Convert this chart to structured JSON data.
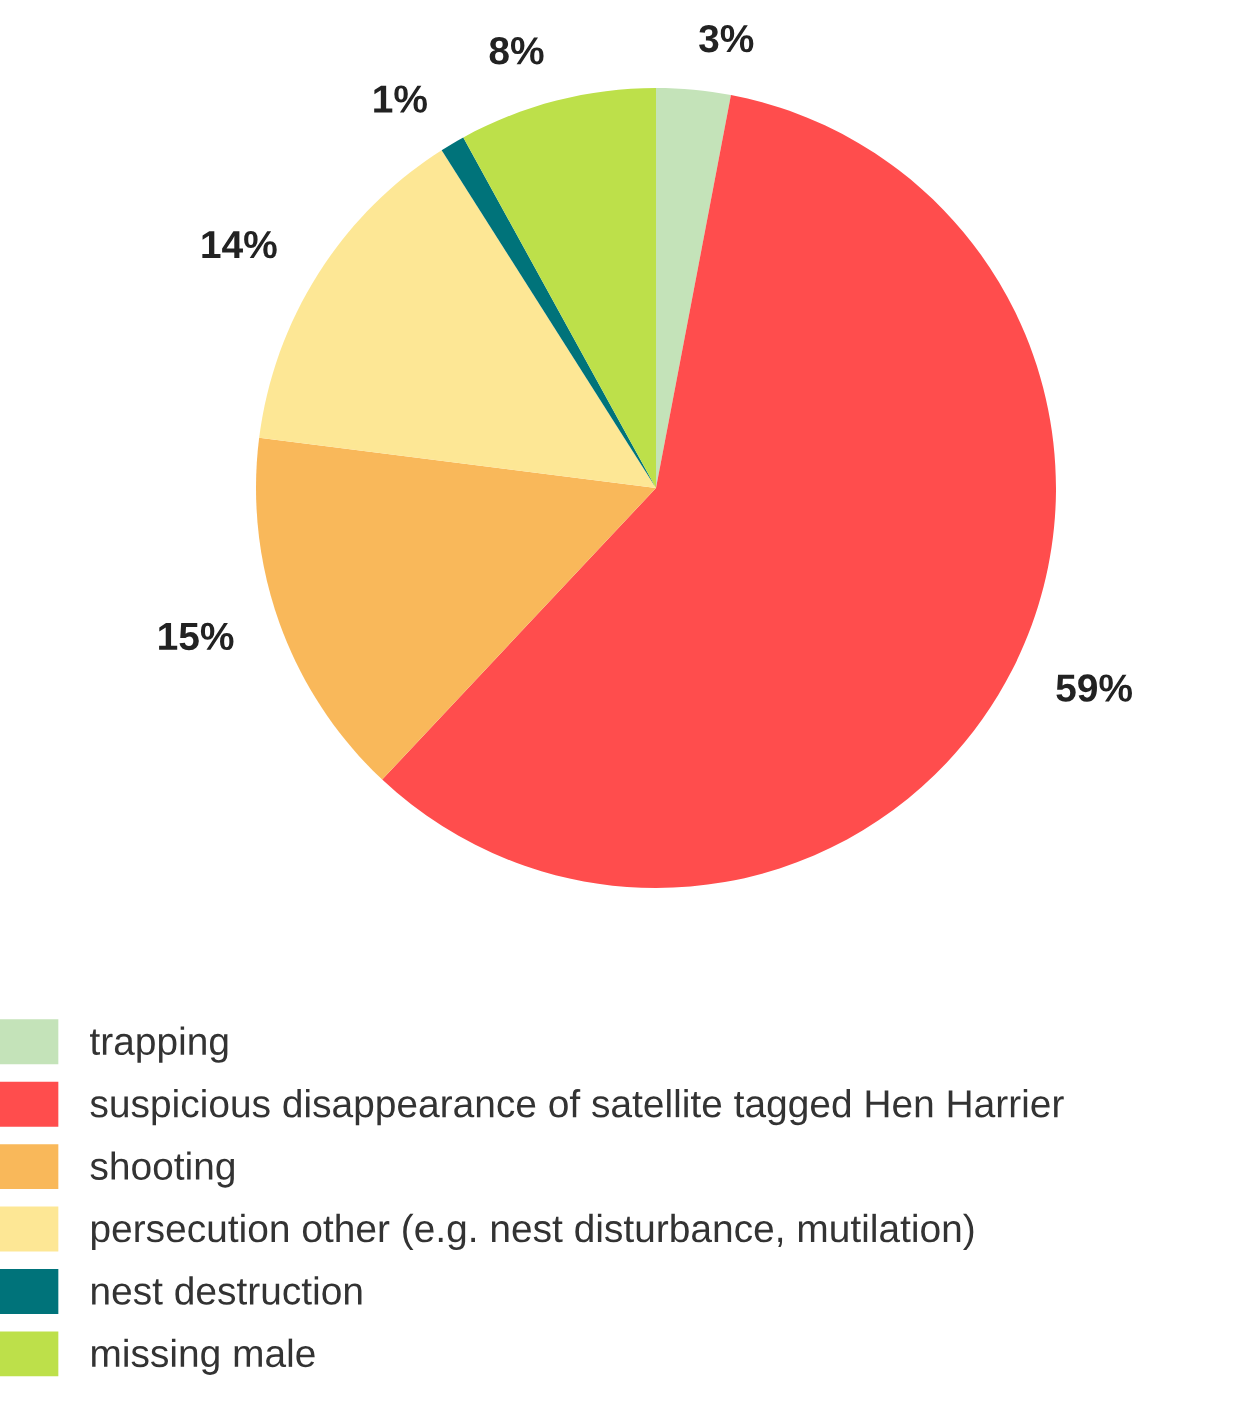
{
  "chart_data": {
    "type": "pie",
    "categories": [
      "trapping",
      "suspicious disappearance of satellite tagged Hen Harrier",
      "shooting",
      "persecution other (e.g. nest disturbance, mutilation)",
      "nest destruction",
      "missing male"
    ],
    "values": [
      3,
      59,
      15,
      14,
      1,
      8
    ],
    "colors": [
      "#c4e3b9",
      "#ff4d4d",
      "#f9b85a",
      "#fde795",
      "#00737a",
      "#bde04a"
    ],
    "value_labels": [
      "3%",
      "59%",
      "15%",
      "14%",
      "1%",
      "8%"
    ],
    "legend": "bottom left"
  }
}
